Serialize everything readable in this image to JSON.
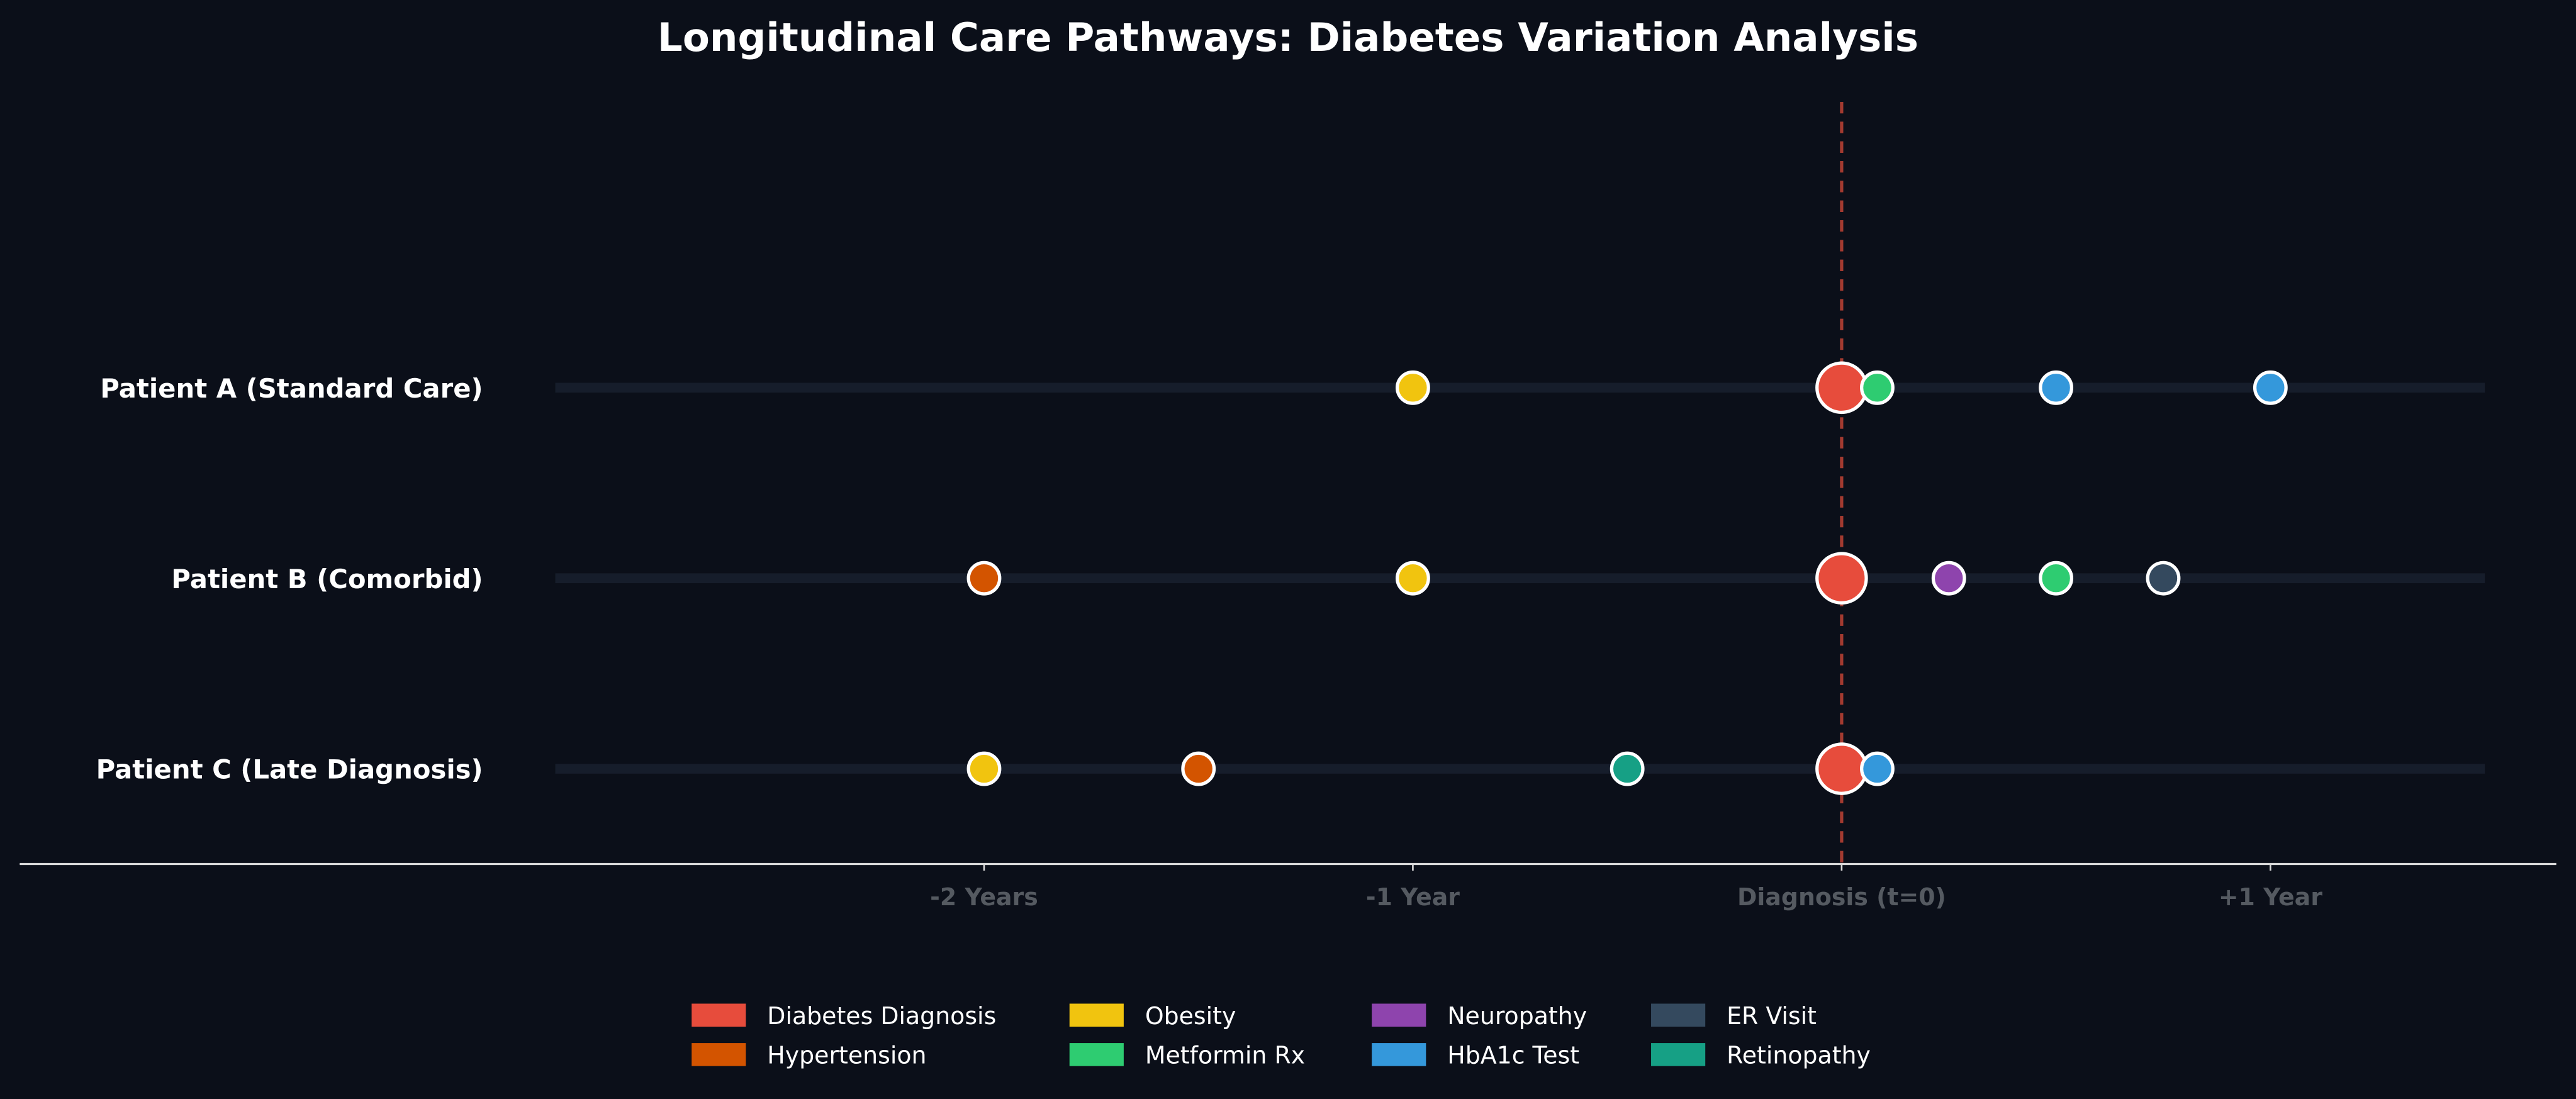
{
  "chart_data": {
    "type": "scatter",
    "title": "Longitudinal Care Pathways: Diabetes Variation Analysis",
    "xlabel": "",
    "ylabel": "",
    "xlim": [
      -4.25,
      1.7
    ],
    "grid": false,
    "legend_position": "bottom",
    "reference_line": {
      "x": 0,
      "style": "dashed",
      "color": "#a33a30"
    },
    "x_ticks": [
      {
        "value": -2,
        "label": "-2 Years"
      },
      {
        "value": -1,
        "label": "-1 Year"
      },
      {
        "value": 0,
        "label": "Diagnosis (t=0)"
      },
      {
        "value": 1,
        "label": "+1 Year"
      }
    ],
    "track_range": [
      -3,
      1.5
    ],
    "event_types": [
      {
        "name": "Diabetes Diagnosis",
        "color": "#e74c3c"
      },
      {
        "name": "Hypertension",
        "color": "#d35400"
      },
      {
        "name": "Obesity",
        "color": "#f1c40f"
      },
      {
        "name": "Metformin Rx",
        "color": "#2ecc71"
      },
      {
        "name": "Neuropathy",
        "color": "#8e44ad"
      },
      {
        "name": "HbA1c Test",
        "color": "#3498db"
      },
      {
        "name": "ER Visit",
        "color": "#34495e"
      },
      {
        "name": "Retinopathy",
        "color": "#16a085"
      }
    ],
    "patients": [
      {
        "label": "Patient A (Standard Care)",
        "events": [
          {
            "type": "Obesity",
            "t": -1
          },
          {
            "type": "Diabetes Diagnosis",
            "t": 0
          },
          {
            "type": "Metformin Rx",
            "t": 0.083
          },
          {
            "type": "HbA1c Test",
            "t": 0.5
          },
          {
            "type": "HbA1c Test",
            "t": 1.0
          }
        ]
      },
      {
        "label": "Patient B (Comorbid)",
        "events": [
          {
            "type": "Hypertension",
            "t": -2
          },
          {
            "type": "Obesity",
            "t": -1
          },
          {
            "type": "Diabetes Diagnosis",
            "t": 0
          },
          {
            "type": "Neuropathy",
            "t": 0.25
          },
          {
            "type": "Metformin Rx",
            "t": 0.5
          },
          {
            "type": "ER Visit",
            "t": 0.75
          }
        ]
      },
      {
        "label": "Patient C (Late Diagnosis)",
        "events": [
          {
            "type": "Obesity",
            "t": -2
          },
          {
            "type": "Hypertension",
            "t": -1.5
          },
          {
            "type": "Retinopathy",
            "t": -0.5
          },
          {
            "type": "Diabetes Diagnosis",
            "t": 0
          },
          {
            "type": "HbA1c Test",
            "t": 0.083
          }
        ]
      }
    ],
    "legend_order": [
      "Diabetes Diagnosis",
      "Hypertension",
      "Obesity",
      "Metformin Rx",
      "Neuropathy",
      "HbA1c Test",
      "ER Visit",
      "Retinopathy"
    ]
  }
}
